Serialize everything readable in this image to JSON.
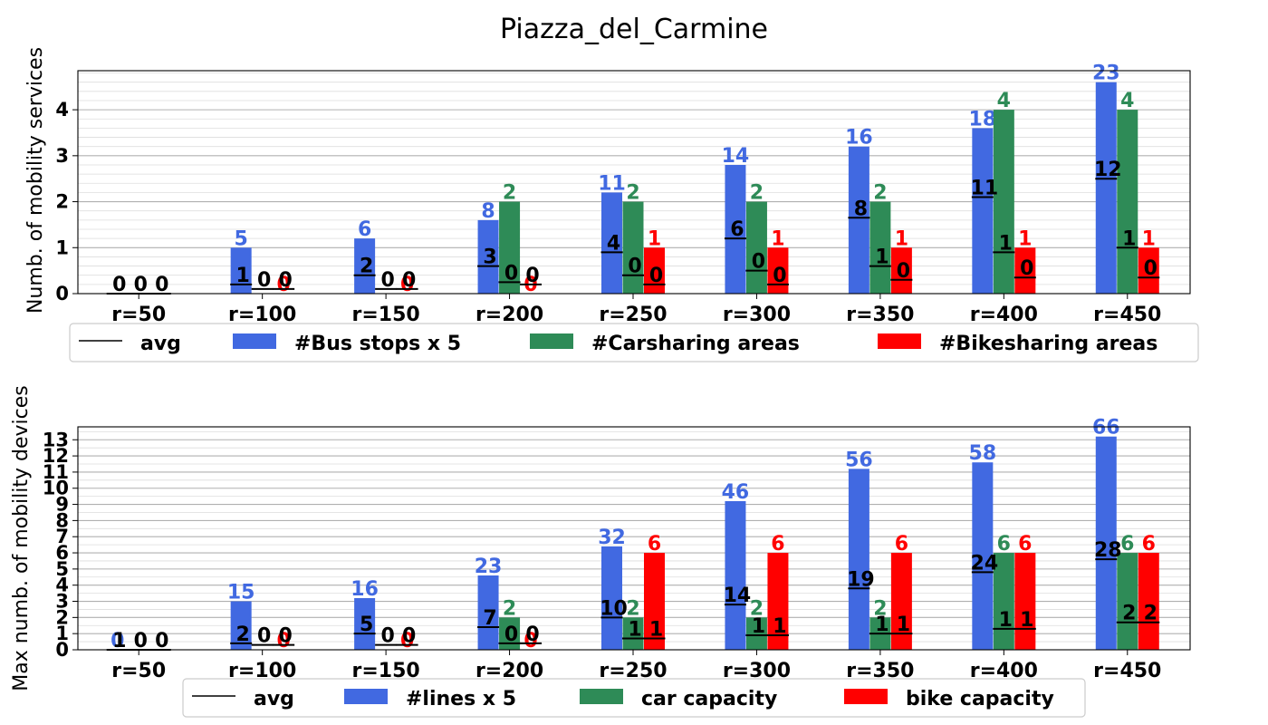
{
  "figure_title": "Piazza_del_Carmine",
  "colors": {
    "bus": "#4169E1",
    "car": "#2E8B57",
    "bike": "#FF0000",
    "avg": "#000000",
    "grid": "#cfcfcf"
  },
  "chart_data": [
    {
      "type": "bar",
      "ylabel": "Numb. of mobility services",
      "ylim": [
        0,
        4.85
      ],
      "yticks": [
        0,
        1,
        2,
        3,
        4
      ],
      "grid": true,
      "categories": [
        "r=50",
        "r=100",
        "r=150",
        "r=200",
        "r=250",
        "r=300",
        "r=350",
        "r=400",
        "r=450"
      ],
      "series": [
        {
          "name": "#Bus stops x 5",
          "color": "#4169E1",
          "values": [
            0,
            1.0,
            1.2,
            1.6,
            2.2,
            2.8,
            3.2,
            3.6,
            4.6
          ],
          "labels": [
            "",
            "5",
            "6",
            "8",
            "11",
            "14",
            "16",
            "18",
            "23"
          ]
        },
        {
          "name": "#Carsharing areas",
          "color": "#2E8B57",
          "values": [
            0,
            0,
            0,
            2,
            2,
            2,
            2,
            4,
            4
          ],
          "labels": [
            "",
            "",
            "",
            "2",
            "2",
            "2",
            "2",
            "4",
            "4"
          ]
        },
        {
          "name": "#Bikesharing areas",
          "color": "#FF0000",
          "values": [
            0,
            0,
            0,
            0,
            1,
            1,
            1,
            1,
            1
          ],
          "labels": [
            "",
            "0",
            "0",
            "0",
            "1",
            "1",
            "1",
            "1",
            "1"
          ]
        }
      ],
      "avg": {
        "name": "avg",
        "series": [
          {
            "values": [
              0,
              0.2,
              0.4,
              0.6,
              0.9,
              1.2,
              1.65,
              2.1,
              2.5
            ],
            "labels": [
              "0",
              "1",
              "2",
              "3",
              "4",
              "6",
              "8",
              "11",
              "12"
            ]
          },
          {
            "values": [
              0,
              0.1,
              0.1,
              0.25,
              0.4,
              0.5,
              0.6,
              0.9,
              1.0
            ],
            "labels": [
              "0",
              "0",
              "0",
              "0",
              "0",
              "0",
              "1",
              "1",
              "1"
            ]
          },
          {
            "values": [
              0,
              0.1,
              0.1,
              0.2,
              0.2,
              0.2,
              0.3,
              0.35,
              0.35
            ],
            "labels": [
              "0",
              "0",
              "0",
              "0",
              "0",
              "0",
              "0",
              "0",
              "0"
            ]
          }
        ]
      },
      "legend": {
        "placement": "below",
        "entries": [
          "avg",
          "#Bus stops x 5",
          "#Carsharing areas",
          "#Bikesharing areas"
        ]
      }
    },
    {
      "type": "bar",
      "ylabel": "Max numb. of mobility devices",
      "ylim": [
        0,
        13.8
      ],
      "yticks": [
        0,
        1,
        2,
        3,
        4,
        5,
        6,
        7,
        8,
        9,
        10,
        11,
        12,
        13
      ],
      "grid": true,
      "categories": [
        "r=50",
        "r=100",
        "r=150",
        "r=200",
        "r=250",
        "r=300",
        "r=350",
        "r=400",
        "r=450"
      ],
      "series": [
        {
          "name": "#lines x 5",
          "color": "#4169E1",
          "values": [
            0,
            3.0,
            3.2,
            4.6,
            6.4,
            9.2,
            11.2,
            11.6,
            13.2
          ],
          "labels": [
            "0",
            "15",
            "16",
            "23",
            "32",
            "46",
            "56",
            "58",
            "66"
          ]
        },
        {
          "name": "car capacity",
          "color": "#2E8B57",
          "values": [
            0,
            0,
            0,
            2,
            2,
            2,
            2,
            6,
            6
          ],
          "labels": [
            "",
            "",
            "",
            "2",
            "2",
            "2",
            "2",
            "6",
            "6"
          ]
        },
        {
          "name": "bike capacity",
          "color": "#FF0000",
          "values": [
            0,
            0,
            0,
            0,
            6,
            6,
            6,
            6,
            6
          ],
          "labels": [
            "",
            "0",
            "0",
            "0",
            "6",
            "6",
            "6",
            "6",
            "6"
          ]
        }
      ],
      "avg": {
        "name": "avg",
        "series": [
          {
            "values": [
              0,
              0.4,
              1.0,
              1.4,
              2.0,
              2.8,
              3.8,
              4.8,
              5.6
            ],
            "labels": [
              "1",
              "2",
              "5",
              "7",
              "10",
              "14",
              "19",
              "24",
              "28"
            ]
          },
          {
            "values": [
              0,
              0.3,
              0.3,
              0.4,
              0.7,
              0.9,
              1.0,
              1.3,
              1.7
            ],
            "labels": [
              "0",
              "0",
              "0",
              "0",
              "1",
              "1",
              "1",
              "1",
              "2"
            ]
          },
          {
            "values": [
              0,
              0.3,
              0.3,
              0.4,
              0.7,
              0.9,
              1.0,
              1.3,
              1.7
            ],
            "labels": [
              "0",
              "0",
              "0",
              "0",
              "1",
              "1",
              "1",
              "1",
              "2"
            ]
          }
        ]
      },
      "legend": {
        "placement": "below",
        "entries": [
          "avg",
          "#lines x 5",
          "car capacity",
          "bike capacity"
        ]
      }
    }
  ]
}
